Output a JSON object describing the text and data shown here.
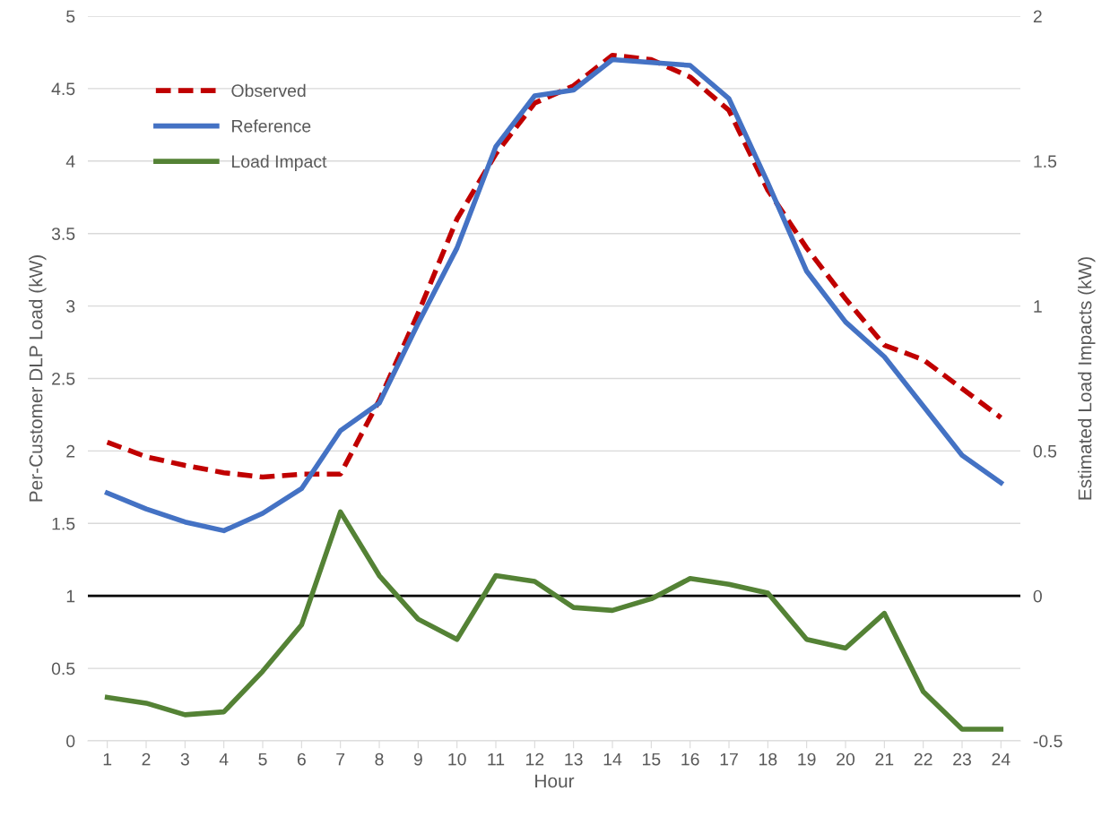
{
  "chart_data": {
    "type": "line",
    "xlabel": "Hour",
    "ylabel": "Per-Customer DLP Load (kW)",
    "y2label": "Estimated Load Impacts (kW)",
    "categories": [
      "1",
      "2",
      "3",
      "4",
      "5",
      "6",
      "7",
      "8",
      "9",
      "10",
      "11",
      "12",
      "13",
      "14",
      "15",
      "16",
      "17",
      "18",
      "19",
      "20",
      "21",
      "22",
      "23",
      "24"
    ],
    "series": [
      {
        "name": "Observed",
        "color": "#c00000",
        "line_style": "dashed",
        "values": [
          2.06,
          1.96,
          1.9,
          1.85,
          1.82,
          1.84,
          1.84,
          2.35,
          2.95,
          3.6,
          4.05,
          4.4,
          4.52,
          4.73,
          4.7,
          4.58,
          4.35,
          3.8,
          3.4,
          3.05,
          2.73,
          2.63,
          2.43,
          2.23
        ]
      },
      {
        "name": "Reference",
        "color": "#4472c4",
        "line_style": "solid",
        "values": [
          1.71,
          1.6,
          1.51,
          1.45,
          1.57,
          1.74,
          2.14,
          2.33,
          2.88,
          3.4,
          4.1,
          4.45,
          4.49,
          4.7,
          4.68,
          4.66,
          4.43,
          3.85,
          3.24,
          2.89,
          2.65,
          2.31,
          1.97,
          1.78
        ]
      },
      {
        "name": "Load Impact",
        "color": "#548235",
        "line_style": "solid",
        "axis": "y2",
        "values": [
          -0.35,
          -0.37,
          -0.41,
          -0.4,
          -0.26,
          -0.1,
          0.29,
          0.07,
          -0.08,
          -0.15,
          0.07,
          0.05,
          -0.04,
          -0.05,
          -0.01,
          0.06,
          0.04,
          0.01,
          -0.15,
          -0.18,
          -0.06,
          -0.33,
          -0.46,
          -0.46
        ]
      }
    ],
    "ylim": [
      0,
      5
    ],
    "yticks": [
      0,
      0.5,
      1,
      1.5,
      2,
      2.5,
      3,
      3.5,
      4,
      4.5,
      5
    ],
    "y2lim": [
      -0.5,
      2
    ],
    "y2ticks": [
      -0.5,
      0,
      0.5,
      1,
      1.5,
      2
    ],
    "ref_lines": [
      {
        "axis": "y2",
        "value": 0,
        "color": "#000000"
      }
    ],
    "grid": "y",
    "legend": "top left",
    "marker": "none"
  }
}
